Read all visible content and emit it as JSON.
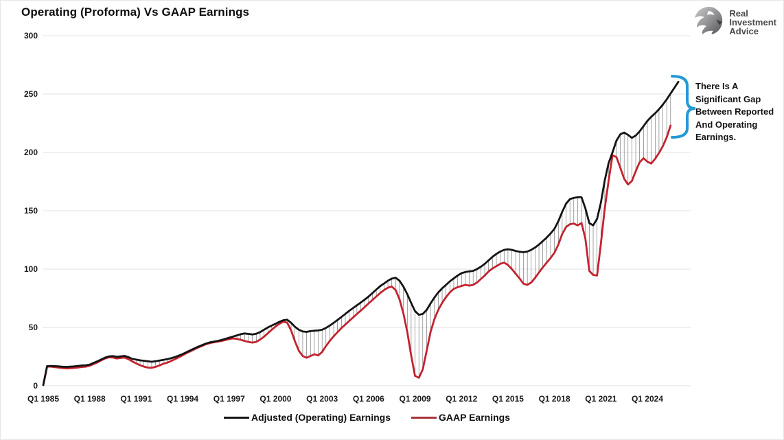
{
  "title": "Operating (Proforma) Vs GAAP Earnings",
  "logo": {
    "name": "real-investment-advice-logo",
    "line1": "Real",
    "line2": "Investment",
    "line3": "Advice"
  },
  "annotation": {
    "text_lines": [
      "There Is A",
      "Significant Gap",
      "Between Reported",
      "And Operating",
      "Earnings."
    ],
    "brace_color": "#2499d6"
  },
  "colors": {
    "operating_line": "#141414",
    "gaap_line": "#c2232e",
    "gridline": "#e2e2e2",
    "dropline": "#3a3a3a",
    "axis_text": "#1a1a1a"
  },
  "legend": {
    "items": [
      {
        "label": "Adjusted (Operating) Earnings",
        "color": "#141414"
      },
      {
        "label": "GAAP Earnings",
        "color": "#a8333a"
      }
    ]
  },
  "chart_data": {
    "type": "line",
    "title": "Operating (Proforma) Vs GAAP Earnings",
    "xlabel": "",
    "ylabel": "",
    "x_start": "Q1 1985",
    "x_frequency": "quarterly",
    "x_tick_labels": [
      "Q1 1985",
      "Q1 1988",
      "Q1 1991",
      "Q1 1994",
      "Q1 1997",
      "Q1 2000",
      "Q1 2003",
      "Q1 2006",
      "Q1 2009",
      "Q1 2012",
      "Q1 2015",
      "Q1 2018",
      "Q1 2021",
      "Q1 2024"
    ],
    "x_tick_every_n_points": 12,
    "y_ticks": [
      0,
      50,
      100,
      150,
      200,
      250,
      300
    ],
    "ylim": [
      0,
      300
    ],
    "grid": true,
    "legend_position": "bottom",
    "gap_droplines_between_series": true,
    "series": [
      {
        "name": "Adjusted (Operating) Earnings",
        "color": "#141414",
        "values": [
          0.6,
          16.8,
          17.0,
          16.8,
          16.6,
          16.3,
          16.2,
          16.4,
          16.6,
          17.0,
          17.4,
          17.6,
          18.2,
          19.6,
          21.0,
          22.6,
          24.2,
          25.2,
          25.4,
          24.8,
          25.2,
          25.6,
          24.6,
          23.0,
          22.4,
          21.8,
          21.4,
          21.0,
          20.6,
          21.0,
          21.6,
          22.2,
          22.8,
          23.6,
          24.6,
          25.8,
          27.2,
          28.8,
          30.4,
          32.0,
          33.4,
          34.8,
          36.2,
          37.2,
          37.8,
          38.4,
          39.2,
          40.2,
          41.2,
          42.2,
          43.2,
          44.2,
          44.8,
          44.4,
          44.0,
          44.6,
          46.0,
          48.0,
          50.0,
          51.6,
          53.2,
          54.8,
          56.2,
          56.6,
          54.0,
          50.5,
          48.0,
          46.5,
          46.2,
          46.8,
          47.2,
          47.4,
          48.0,
          49.6,
          51.6,
          54.0,
          56.4,
          59.0,
          61.6,
          64.2,
          66.6,
          69.0,
          71.4,
          73.8,
          76.4,
          79.4,
          82.4,
          85.4,
          87.6,
          90.0,
          91.8,
          92.6,
          90.0,
          85.0,
          78.5,
          71.0,
          64.0,
          60.8,
          61.5,
          65.0,
          70.5,
          75.5,
          80.0,
          83.5,
          86.5,
          89.5,
          92.0,
          94.5,
          96.5,
          97.5,
          98.0,
          98.5,
          100.0,
          102.0,
          104.5,
          107.5,
          110.5,
          113.0,
          115.0,
          116.5,
          117.0,
          116.5,
          115.5,
          114.8,
          114.5,
          115.0,
          116.5,
          118.5,
          121.0,
          124.0,
          127.0,
          130.5,
          134.5,
          141.0,
          149.0,
          156.0,
          160.0,
          161.0,
          161.5,
          161.5,
          152.0,
          139.5,
          137.5,
          143.0,
          157.0,
          176.0,
          191.0,
          200.0,
          210.0,
          215.5,
          217.0,
          215.0,
          212.5,
          214.5,
          218.0,
          222.5,
          227.0,
          230.5,
          233.5,
          237.0,
          241.0,
          245.5,
          250.5,
          255.5,
          260.5
        ]
      },
      {
        "name": "GAAP Earnings",
        "color": "#c2232e",
        "values": [
          0.6,
          16.4,
          16.4,
          16.0,
          15.6,
          15.2,
          14.9,
          15.0,
          15.3,
          15.7,
          16.1,
          16.4,
          17.2,
          18.6,
          20.0,
          21.8,
          23.4,
          24.4,
          24.2,
          23.4,
          23.8,
          24.2,
          22.8,
          20.8,
          19.2,
          17.6,
          16.4,
          15.6,
          15.4,
          16.2,
          17.4,
          18.8,
          19.8,
          21.2,
          22.8,
          24.4,
          26.2,
          28.0,
          29.6,
          31.2,
          32.8,
          34.2,
          35.6,
          36.6,
          37.2,
          37.8,
          38.4,
          39.2,
          40.0,
          40.6,
          40.2,
          39.4,
          38.4,
          37.6,
          37.0,
          37.6,
          39.6,
          42.0,
          45.0,
          48.0,
          50.8,
          53.2,
          55.0,
          54.0,
          47.5,
          38.0,
          30.0,
          25.5,
          24.0,
          25.5,
          27.0,
          26.0,
          29.0,
          34.0,
          38.5,
          42.5,
          46.0,
          49.5,
          52.5,
          55.5,
          58.5,
          61.5,
          64.5,
          67.5,
          70.5,
          73.5,
          76.5,
          79.5,
          82.0,
          84.0,
          85.0,
          82.0,
          74.0,
          62.0,
          46.0,
          26.0,
          8.5,
          6.8,
          14.0,
          30.0,
          46.0,
          57.0,
          65.0,
          71.0,
          76.0,
          80.0,
          83.0,
          84.5,
          85.5,
          86.5,
          85.8,
          86.5,
          88.5,
          91.5,
          94.5,
          98.0,
          100.5,
          102.5,
          104.5,
          105.5,
          103.5,
          100.0,
          96.0,
          92.0,
          87.5,
          86.5,
          88.5,
          92.5,
          97.0,
          101.5,
          105.5,
          109.5,
          114.0,
          121.0,
          130.0,
          136.0,
          138.5,
          139.0,
          137.5,
          139.5,
          126.0,
          98.5,
          95.0,
          94.5,
          122.0,
          152.0,
          176.0,
          197.5,
          196.0,
          187.0,
          177.5,
          172.5,
          175.5,
          184.0,
          191.5,
          195.0,
          192.0,
          190.5,
          194.5,
          199.5,
          205.5,
          213.0,
          223.0
        ]
      }
    ]
  }
}
